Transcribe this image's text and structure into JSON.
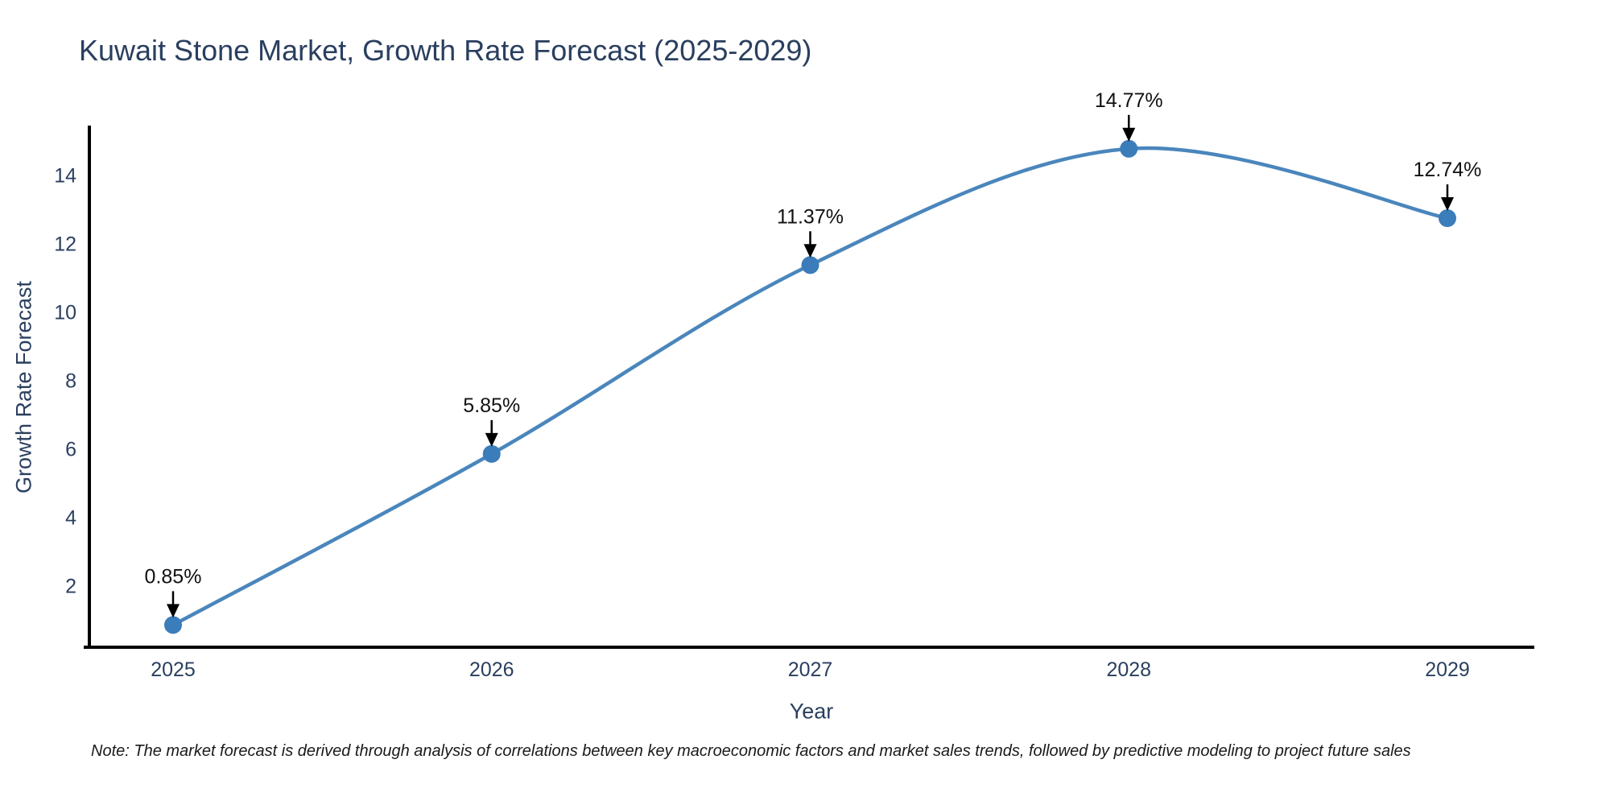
{
  "note": "Note: The market forecast is derived through analysis of correlations between key macroeconomic factors and market sales trends, followed by predictive modeling to project future sales",
  "chart_data": {
    "type": "line",
    "title": "Kuwait Stone Market, Growth Rate Forecast (2025-2029)",
    "xlabel": "Year",
    "ylabel": "Growth Rate Forecast",
    "x": [
      2025,
      2026,
      2027,
      2028,
      2029
    ],
    "values": [
      0.85,
      5.85,
      11.37,
      14.77,
      12.74
    ],
    "point_labels": [
      "0.85%",
      "5.85%",
      "11.37%",
      "14.77%",
      "12.74%"
    ],
    "yticks": [
      2,
      4,
      6,
      8,
      10,
      12,
      14
    ],
    "ylim": [
      0.2,
      15.4
    ],
    "grid": false,
    "legend": "none",
    "smooth_spline": true,
    "colors": {
      "line": "#4a86bc",
      "marker": "#3b7cba",
      "axis": "#000000",
      "tick_label": "#2a3f5f",
      "title": "#2a3f5f",
      "annotation": "#111111",
      "arrow": "#000000",
      "background": "#ffffff"
    }
  }
}
